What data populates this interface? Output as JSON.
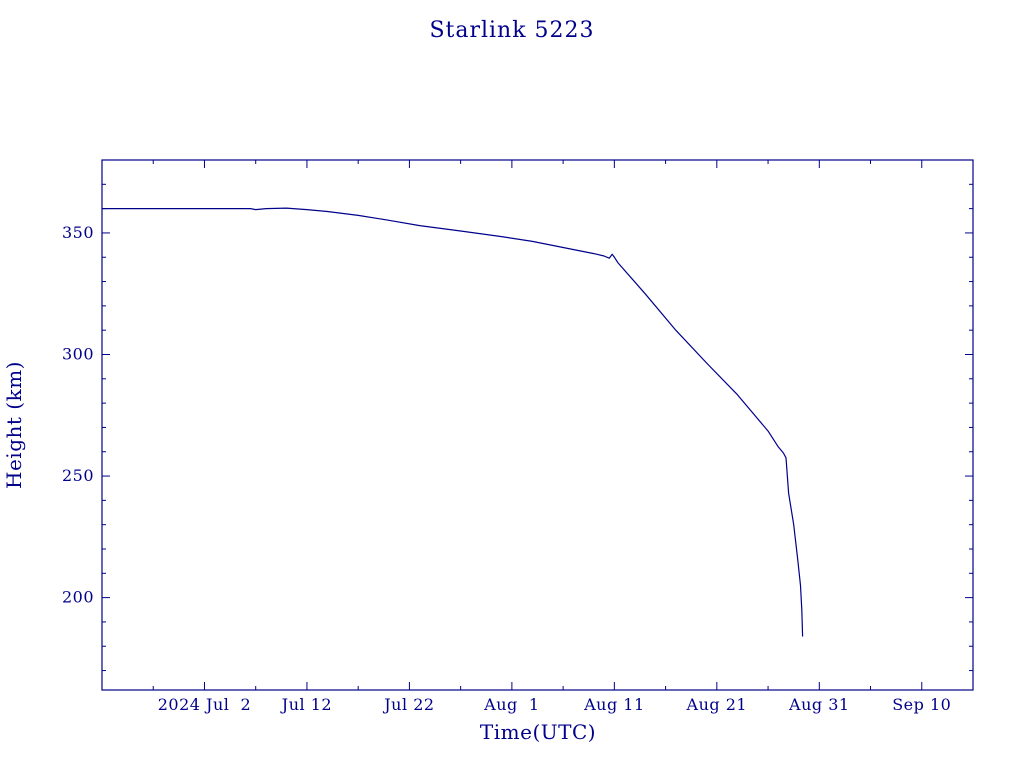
{
  "chart_data": {
    "type": "line",
    "title": "Starlink 5223",
    "xlabel": "Time(UTC)",
    "ylabel": "Height (km)",
    "color": "#00008b",
    "background": "#ffffff",
    "grid": false,
    "x_is_date": true,
    "xlim": [
      "2024-06-22T00:00",
      "2024-09-15T00:00"
    ],
    "ylim": [
      162,
      380
    ],
    "x_ticks": [
      {
        "date": "2024-07-02",
        "label": "2024 Jul  2"
      },
      {
        "date": "2024-07-12",
        "label": "Jul 12"
      },
      {
        "date": "2024-07-22",
        "label": "Jul 22"
      },
      {
        "date": "2024-08-01",
        "label": "Aug  1"
      },
      {
        "date": "2024-08-11",
        "label": "Aug 11"
      },
      {
        "date": "2024-08-21",
        "label": "Aug 21"
      },
      {
        "date": "2024-08-31",
        "label": "Aug 31"
      },
      {
        "date": "2024-09-10",
        "label": "Sep 10"
      }
    ],
    "x_minor_step_days": 5,
    "y_ticks": [
      200,
      250,
      300,
      350
    ],
    "y_minor_step": 10,
    "series": [
      {
        "points": [
          [
            "2024-06-22T00:00",
            360.0
          ],
          [
            "2024-07-01T00:00",
            360.0
          ],
          [
            "2024-07-06T12:00",
            360.0
          ],
          [
            "2024-07-07T00:00",
            359.6
          ],
          [
            "2024-07-08T00:00",
            360.0
          ],
          [
            "2024-07-10T00:00",
            360.2
          ],
          [
            "2024-07-12T00:00",
            359.6
          ],
          [
            "2024-07-14T00:00",
            358.8
          ],
          [
            "2024-07-17T00:00",
            357.2
          ],
          [
            "2024-07-20T00:00",
            355.2
          ],
          [
            "2024-07-23T00:00",
            353.0
          ],
          [
            "2024-07-27T00:00",
            350.8
          ],
          [
            "2024-07-31T00:00",
            348.5
          ],
          [
            "2024-08-03T00:00",
            346.5
          ],
          [
            "2024-08-06T00:00",
            344.0
          ],
          [
            "2024-08-09T00:00",
            341.5
          ],
          [
            "2024-08-10T00:00",
            340.5
          ],
          [
            "2024-08-10T12:00",
            339.6
          ],
          [
            "2024-08-10T19:00",
            341.2
          ],
          [
            "2024-08-11T00:00",
            340.0
          ],
          [
            "2024-08-11T08:00",
            337.8
          ],
          [
            "2024-08-14T00:00",
            325.0
          ],
          [
            "2024-08-17T00:00",
            310.0
          ],
          [
            "2024-08-20T00:00",
            296.5
          ],
          [
            "2024-08-23T00:00",
            283.5
          ],
          [
            "2024-08-26T00:00",
            268.5
          ],
          [
            "2024-08-27T00:00",
            262.0
          ],
          [
            "2024-08-27T12:00",
            259.5
          ],
          [
            "2024-08-27T18:00",
            257.5
          ],
          [
            "2024-08-28T00:00",
            243.0
          ],
          [
            "2024-08-28T12:00",
            230.0
          ],
          [
            "2024-08-28T22:00",
            215.0
          ],
          [
            "2024-08-29T04:00",
            205.0
          ],
          [
            "2024-08-29T07:00",
            195.0
          ],
          [
            "2024-08-29T09:00",
            184.0
          ]
        ]
      }
    ]
  }
}
